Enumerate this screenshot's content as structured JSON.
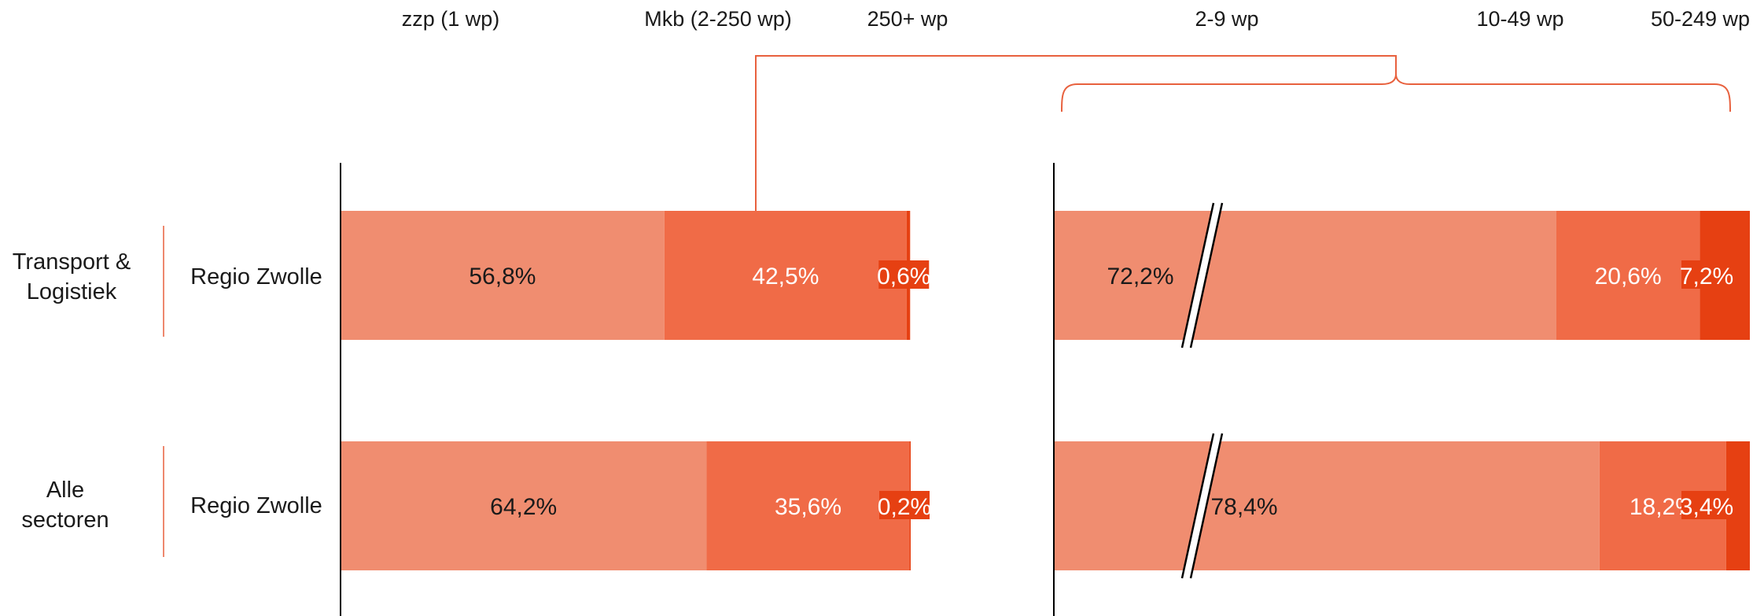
{
  "chart_data": {
    "type": "bar",
    "stacked": true,
    "orientation": "horizontal",
    "colors": {
      "light": "#F08D70",
      "mid": "#F06B47",
      "dark": "#E64012"
    },
    "panels": [
      {
        "headers": [
          "zzp (1 wp)",
          "Mkb (2-250 wp)",
          "250+ wp"
        ],
        "rows": [
          {
            "group": "Transport & Logistiek",
            "region": "Regio Zwolle",
            "series": [
              {
                "name": "zzp (1 wp)",
                "value": 56.8,
                "label": "56,8%"
              },
              {
                "name": "Mkb (2-250 wp)",
                "value": 42.5,
                "label": "42,5%"
              },
              {
                "name": "250+ wp",
                "value": 0.6,
                "label": "0,6%"
              }
            ]
          },
          {
            "group": "Alle sectoren",
            "region": "Regio Zwolle",
            "series": [
              {
                "name": "zzp (1 wp)",
                "value": 64.2,
                "label": "64,2%"
              },
              {
                "name": "Mkb (2-250 wp)",
                "value": 35.6,
                "label": "35,6%"
              },
              {
                "name": "250+ wp",
                "value": 0.2,
                "label": "0,2%"
              }
            ]
          }
        ]
      },
      {
        "headers": [
          "2-9 wp",
          "10-49 wp",
          "50-249 wp"
        ],
        "axis_break": true,
        "rows": [
          {
            "series": [
              {
                "name": "2-9 wp",
                "value": 72.2,
                "label": "72,2%"
              },
              {
                "name": "10-49 wp",
                "value": 20.6,
                "label": "20,6%"
              },
              {
                "name": "50-249 wp",
                "value": 7.2,
                "label": "7,2%"
              }
            ]
          },
          {
            "series": [
              {
                "name": "2-9 wp",
                "value": 78.4,
                "label": "78,4%"
              },
              {
                "name": "10-49 wp",
                "value": 18.2,
                "label": "18,2%"
              },
              {
                "name": "50-249 wp",
                "value": 3.4,
                "label": "3,4%"
              }
            ]
          }
        ]
      }
    ]
  }
}
